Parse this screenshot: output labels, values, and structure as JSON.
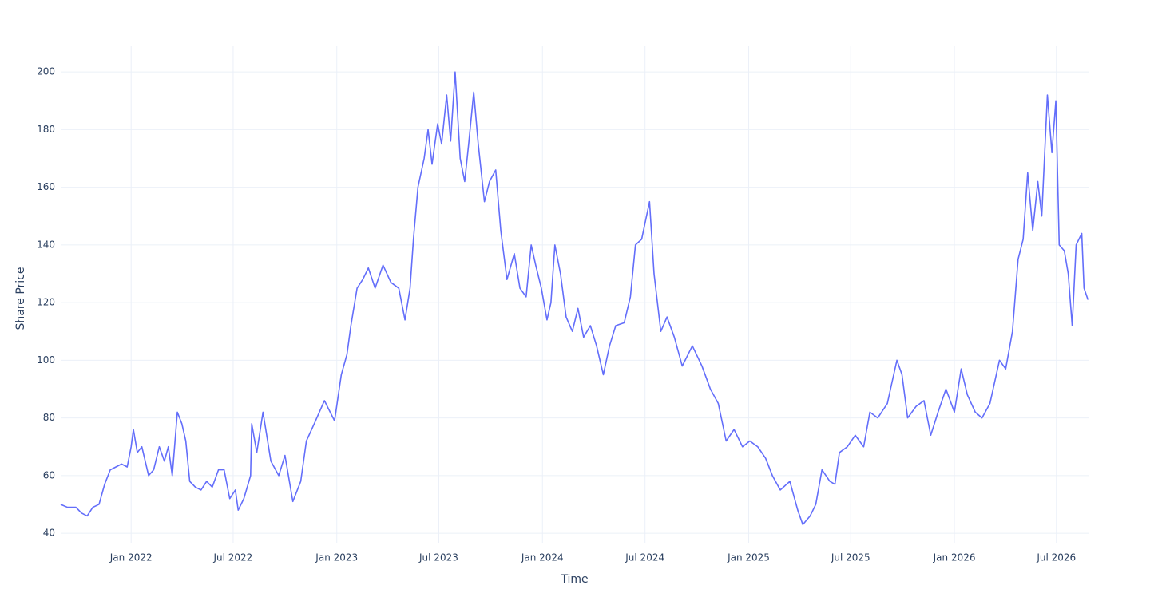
{
  "chart_data": {
    "type": "line",
    "x_label": "Time",
    "y_label": "Share Price",
    "color": "#636efa",
    "grid": true,
    "xlim": [
      "2021-08-29",
      "2026-08-27"
    ],
    "ylim": [
      36.7,
      208.9
    ],
    "yticks": [
      40,
      60,
      80,
      100,
      120,
      140,
      160,
      180,
      200
    ],
    "xticks": [
      {
        "value": "2022-01-01",
        "label": "Jan 2022"
      },
      {
        "value": "2022-07-01",
        "label": "Jul 2022"
      },
      {
        "value": "2023-01-01",
        "label": "Jan 2023"
      },
      {
        "value": "2023-07-01",
        "label": "Jul 2023"
      },
      {
        "value": "2024-01-01",
        "label": "Jan 2024"
      },
      {
        "value": "2024-07-01",
        "label": "Jul 2024"
      },
      {
        "value": "2025-01-01",
        "label": "Jan 2025"
      },
      {
        "value": "2025-07-01",
        "label": "Jul 2025"
      },
      {
        "value": "2026-01-01",
        "label": "Jan 2026"
      },
      {
        "value": "2026-07-01",
        "label": "Jul 2026"
      }
    ],
    "x": [
      "2021-08-29",
      "2021-09-10",
      "2021-09-25",
      "2021-10-05",
      "2021-10-15",
      "2021-10-25",
      "2021-11-05",
      "2021-11-15",
      "2021-11-25",
      "2021-12-05",
      "2021-12-15",
      "2021-12-25",
      "2022-01-01",
      "2022-01-05",
      "2022-01-12",
      "2022-01-20",
      "2022-02-01",
      "2022-02-10",
      "2022-02-20",
      "2022-03-01",
      "2022-03-08",
      "2022-03-15",
      "2022-03-24",
      "2022-04-01",
      "2022-04-08",
      "2022-04-15",
      "2022-04-25",
      "2022-05-05",
      "2022-05-15",
      "2022-05-25",
      "2022-06-05",
      "2022-06-15",
      "2022-06-25",
      "2022-07-05",
      "2022-07-10",
      "2022-07-20",
      "2022-08-01",
      "2022-08-03",
      "2022-08-12",
      "2022-08-23",
      "2022-09-06",
      "2022-09-20",
      "2022-10-01",
      "2022-10-15",
      "2022-10-29",
      "2022-11-08",
      "2022-11-22",
      "2022-12-10",
      "2022-12-28",
      "2023-01-09",
      "2023-01-19",
      "2023-01-26",
      "2023-02-06",
      "2023-02-16",
      "2023-02-26",
      "2023-03-10",
      "2023-03-24",
      "2023-04-07",
      "2023-04-21",
      "2023-05-02",
      "2023-05-11",
      "2023-05-17",
      "2023-05-25",
      "2023-06-05",
      "2023-06-12",
      "2023-06-19",
      "2023-06-29",
      "2023-07-06",
      "2023-07-15",
      "2023-07-22",
      "2023-07-30",
      "2023-08-08",
      "2023-08-16",
      "2023-08-23",
      "2023-09-01",
      "2023-09-09",
      "2023-09-20",
      "2023-09-29",
      "2023-10-10",
      "2023-10-19",
      "2023-10-30",
      "2023-11-12",
      "2023-11-22",
      "2023-12-03",
      "2023-12-12",
      "2023-12-20",
      "2023-12-30",
      "2024-01-09",
      "2024-01-16",
      "2024-01-23",
      "2024-02-02",
      "2024-02-12",
      "2024-02-23",
      "2024-03-04",
      "2024-03-14",
      "2024-03-26",
      "2024-04-06",
      "2024-04-18",
      "2024-04-29",
      "2024-05-10",
      "2024-05-25",
      "2024-06-05",
      "2024-06-14",
      "2024-06-25",
      "2024-07-09",
      "2024-07-17",
      "2024-07-29",
      "2024-08-09",
      "2024-08-22",
      "2024-09-05",
      "2024-09-23",
      "2024-10-10",
      "2024-10-25",
      "2024-11-08",
      "2024-11-22",
      "2024-12-06",
      "2024-12-21",
      "2025-01-03",
      "2025-01-17",
      "2025-01-31",
      "2025-02-12",
      "2025-02-26",
      "2025-03-15",
      "2025-03-29",
      "2025-04-07",
      "2025-04-20",
      "2025-04-30",
      "2025-05-11",
      "2025-05-25",
      "2025-06-03",
      "2025-06-11",
      "2025-06-25",
      "2025-07-09",
      "2025-07-24",
      "2025-08-04",
      "2025-08-18",
      "2025-09-04",
      "2025-09-13",
      "2025-09-21",
      "2025-09-30",
      "2025-10-10",
      "2025-10-25",
      "2025-11-08",
      "2025-11-20",
      "2025-12-03",
      "2025-12-17",
      "2026-01-01",
      "2026-01-13",
      "2026-01-24",
      "2026-02-07",
      "2026-02-19",
      "2026-03-05",
      "2026-03-22",
      "2026-04-02",
      "2026-04-14",
      "2026-04-24",
      "2026-05-03",
      "2026-05-11",
      "2026-05-20",
      "2026-05-29",
      "2026-06-05",
      "2026-06-15",
      "2026-06-23",
      "2026-06-30",
      "2026-07-06",
      "2026-07-15",
      "2026-07-22",
      "2026-07-29",
      "2026-08-05",
      "2026-08-15",
      "2026-08-19",
      "2026-08-26"
    ],
    "values": [
      50,
      49,
      49,
      47,
      46,
      49,
      50,
      57,
      62,
      63,
      64,
      63,
      70,
      76,
      68,
      70,
      60,
      62,
      70,
      65,
      70,
      60,
      82,
      78,
      72,
      58,
      56,
      55,
      58,
      56,
      62,
      62,
      52,
      55,
      48,
      52,
      60,
      78,
      68,
      82,
      65,
      60,
      67,
      51,
      58,
      72,
      78,
      86,
      79,
      95,
      102,
      112,
      125,
      128,
      132,
      125,
      133,
      127,
      125,
      114,
      125,
      142,
      160,
      170,
      180,
      168,
      182,
      175,
      192,
      176,
      200,
      170,
      162,
      175,
      193,
      175,
      155,
      162,
      166,
      145,
      128,
      137,
      125,
      122,
      140,
      133,
      125,
      114,
      120,
      140,
      130,
      115,
      110,
      118,
      108,
      112,
      105,
      95,
      105,
      112,
      113,
      122,
      140,
      142,
      155,
      130,
      110,
      115,
      108,
      98,
      105,
      98,
      90,
      85,
      72,
      76,
      70,
      72,
      70,
      66,
      60,
      55,
      58,
      48,
      43,
      46,
      50,
      62,
      58,
      57,
      68,
      70,
      74,
      70,
      82,
      80,
      85,
      93,
      100,
      95,
      80,
      84,
      86,
      74,
      82,
      90,
      82,
      97,
      88,
      82,
      80,
      85,
      100,
      97,
      110,
      135,
      142,
      165,
      145,
      162,
      150,
      192,
      172,
      190,
      140,
      138,
      130,
      112,
      140,
      144,
      125,
      121
    ]
  }
}
